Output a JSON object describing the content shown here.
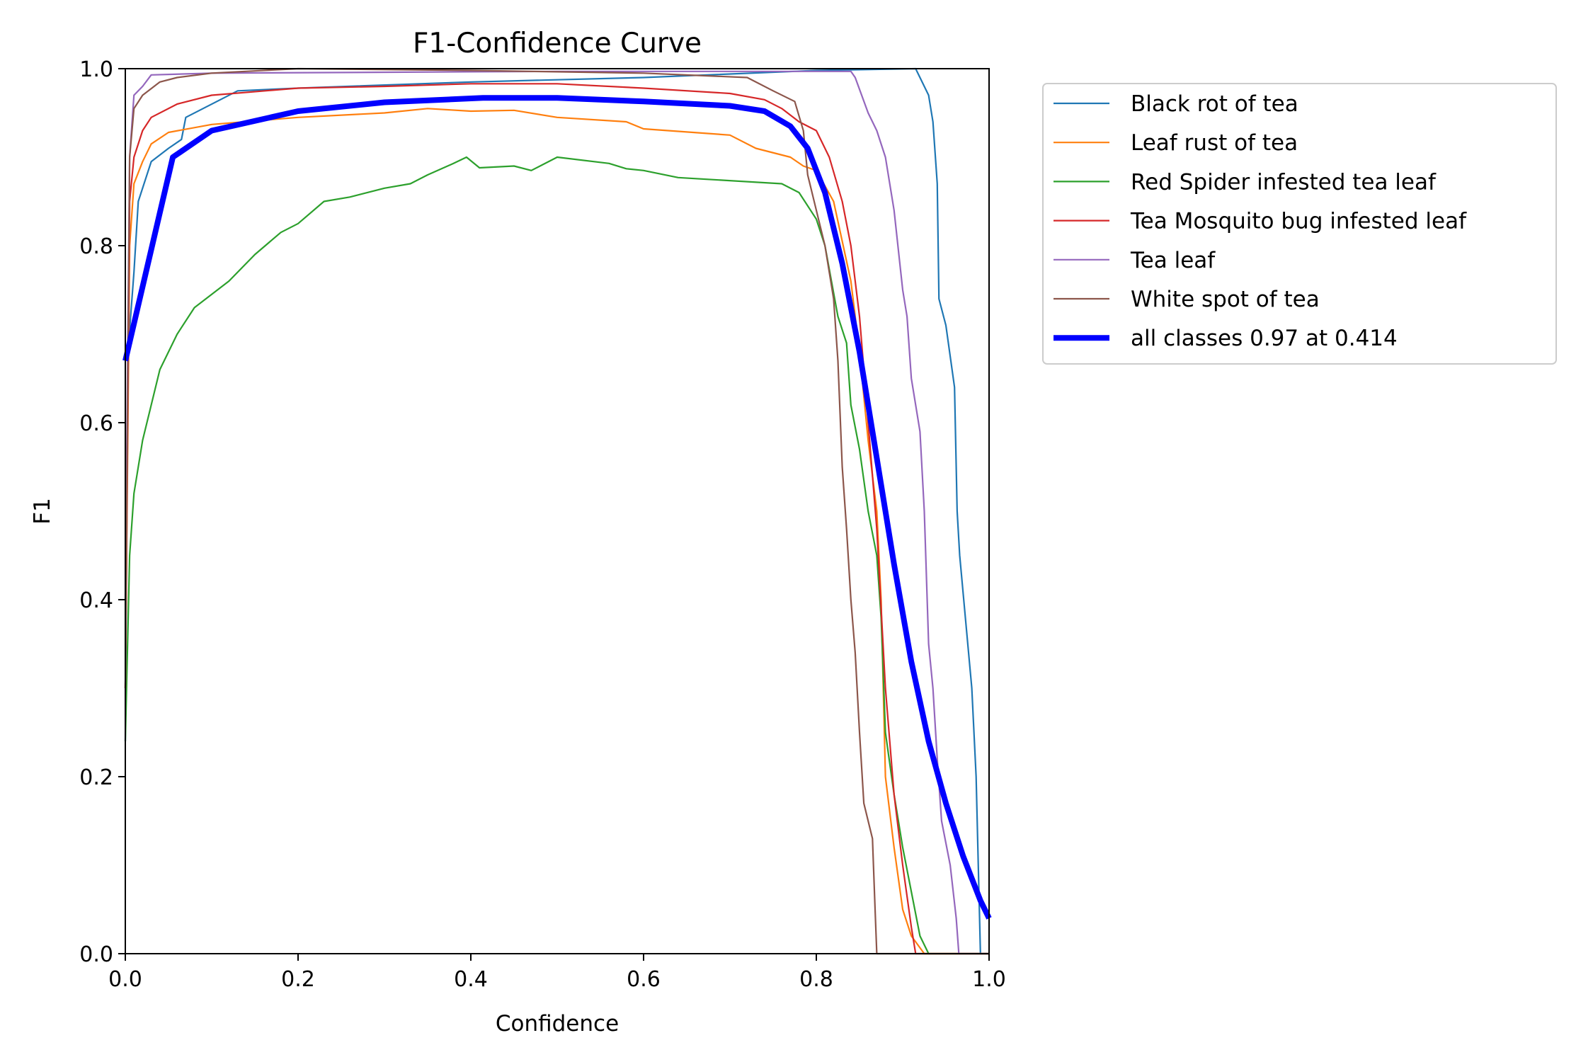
{
  "chart_data": {
    "type": "line",
    "title": "F1-Confidence Curve",
    "xlabel": "Confidence",
    "ylabel": "F1",
    "xlim": [
      0,
      1
    ],
    "ylim": [
      0,
      1
    ],
    "xticks": [
      "0.0",
      "0.2",
      "0.4",
      "0.6",
      "0.8",
      "1.0"
    ],
    "yticks": [
      "0.0",
      "0.2",
      "0.4",
      "0.6",
      "0.8",
      "1.0"
    ],
    "grid": false,
    "legend_position": "outside-upper-right",
    "series": [
      {
        "name": "Black rot of tea",
        "color": "#1f77b4",
        "width": "thin",
        "points": [
          [
            0,
            0.24
          ],
          [
            0.003,
            0.68
          ],
          [
            0.01,
            0.77
          ],
          [
            0.015,
            0.85
          ],
          [
            0.03,
            0.895
          ],
          [
            0.05,
            0.91
          ],
          [
            0.065,
            0.92
          ],
          [
            0.07,
            0.945
          ],
          [
            0.13,
            0.975
          ],
          [
            0.2,
            0.978
          ],
          [
            0.4,
            0.985
          ],
          [
            0.6,
            0.99
          ],
          [
            0.8,
            0.998
          ],
          [
            0.915,
            1.0
          ],
          [
            0.93,
            0.97
          ],
          [
            0.935,
            0.94
          ],
          [
            0.94,
            0.87
          ],
          [
            0.942,
            0.74
          ],
          [
            0.95,
            0.71
          ],
          [
            0.96,
            0.64
          ],
          [
            0.963,
            0.5
          ],
          [
            0.966,
            0.45
          ],
          [
            0.98,
            0.3
          ],
          [
            0.985,
            0.2
          ],
          [
            0.99,
            0.0
          ],
          [
            1.0,
            0.0
          ]
        ]
      },
      {
        "name": "Leaf rust of tea",
        "color": "#ff7f0e",
        "width": "thin",
        "points": [
          [
            0,
            0.3
          ],
          [
            0.005,
            0.8
          ],
          [
            0.01,
            0.87
          ],
          [
            0.02,
            0.895
          ],
          [
            0.03,
            0.915
          ],
          [
            0.05,
            0.928
          ],
          [
            0.1,
            0.937
          ],
          [
            0.2,
            0.945
          ],
          [
            0.3,
            0.95
          ],
          [
            0.35,
            0.955
          ],
          [
            0.4,
            0.952
          ],
          [
            0.45,
            0.953
          ],
          [
            0.5,
            0.945
          ],
          [
            0.58,
            0.94
          ],
          [
            0.6,
            0.932
          ],
          [
            0.7,
            0.925
          ],
          [
            0.73,
            0.91
          ],
          [
            0.77,
            0.9
          ],
          [
            0.785,
            0.89
          ],
          [
            0.8,
            0.885
          ],
          [
            0.82,
            0.85
          ],
          [
            0.84,
            0.76
          ],
          [
            0.85,
            0.68
          ],
          [
            0.86,
            0.58
          ],
          [
            0.87,
            0.5
          ],
          [
            0.875,
            0.4
          ],
          [
            0.88,
            0.2
          ],
          [
            0.89,
            0.12
          ],
          [
            0.9,
            0.05
          ],
          [
            0.91,
            0.02
          ],
          [
            0.925,
            0.0
          ],
          [
            1.0,
            0.0
          ]
        ]
      },
      {
        "name": "Red Spider infested tea leaf",
        "color": "#2ca02c",
        "width": "thin",
        "points": [
          [
            0,
            0.24
          ],
          [
            0.005,
            0.45
          ],
          [
            0.01,
            0.52
          ],
          [
            0.02,
            0.58
          ],
          [
            0.03,
            0.62
          ],
          [
            0.04,
            0.66
          ],
          [
            0.06,
            0.7
          ],
          [
            0.08,
            0.73
          ],
          [
            0.1,
            0.745
          ],
          [
            0.12,
            0.76
          ],
          [
            0.15,
            0.79
          ],
          [
            0.18,
            0.815
          ],
          [
            0.2,
            0.825
          ],
          [
            0.23,
            0.85
          ],
          [
            0.26,
            0.855
          ],
          [
            0.3,
            0.865
          ],
          [
            0.33,
            0.87
          ],
          [
            0.35,
            0.88
          ],
          [
            0.38,
            0.893
          ],
          [
            0.395,
            0.9
          ],
          [
            0.41,
            0.888
          ],
          [
            0.45,
            0.89
          ],
          [
            0.47,
            0.885
          ],
          [
            0.5,
            0.9
          ],
          [
            0.56,
            0.893
          ],
          [
            0.58,
            0.887
          ],
          [
            0.6,
            0.885
          ],
          [
            0.64,
            0.877
          ],
          [
            0.76,
            0.87
          ],
          [
            0.78,
            0.86
          ],
          [
            0.8,
            0.83
          ],
          [
            0.81,
            0.8
          ],
          [
            0.825,
            0.72
          ],
          [
            0.835,
            0.69
          ],
          [
            0.84,
            0.62
          ],
          [
            0.85,
            0.57
          ],
          [
            0.86,
            0.5
          ],
          [
            0.87,
            0.45
          ],
          [
            0.875,
            0.38
          ],
          [
            0.88,
            0.25
          ],
          [
            0.89,
            0.18
          ],
          [
            0.9,
            0.12
          ],
          [
            0.91,
            0.07
          ],
          [
            0.92,
            0.02
          ],
          [
            0.93,
            0.0
          ],
          [
            1.0,
            0.0
          ]
        ]
      },
      {
        "name": "Tea Mosquito bug infested leaf",
        "color": "#d62728",
        "width": "thin",
        "points": [
          [
            0,
            0.3
          ],
          [
            0.005,
            0.85
          ],
          [
            0.01,
            0.9
          ],
          [
            0.02,
            0.93
          ],
          [
            0.03,
            0.945
          ],
          [
            0.06,
            0.96
          ],
          [
            0.1,
            0.97
          ],
          [
            0.2,
            0.978
          ],
          [
            0.3,
            0.98
          ],
          [
            0.4,
            0.983
          ],
          [
            0.5,
            0.983
          ],
          [
            0.6,
            0.978
          ],
          [
            0.7,
            0.972
          ],
          [
            0.74,
            0.965
          ],
          [
            0.76,
            0.955
          ],
          [
            0.78,
            0.94
          ],
          [
            0.8,
            0.93
          ],
          [
            0.815,
            0.9
          ],
          [
            0.83,
            0.85
          ],
          [
            0.84,
            0.8
          ],
          [
            0.85,
            0.72
          ],
          [
            0.86,
            0.6
          ],
          [
            0.87,
            0.48
          ],
          [
            0.88,
            0.3
          ],
          [
            0.89,
            0.18
          ],
          [
            0.9,
            0.1
          ],
          [
            0.91,
            0.03
          ],
          [
            0.915,
            0.0
          ],
          [
            1.0,
            0.0
          ]
        ]
      },
      {
        "name": "Tea leaf",
        "color": "#9467bd",
        "width": "thin",
        "points": [
          [
            0,
            0.4
          ],
          [
            0.005,
            0.9
          ],
          [
            0.01,
            0.97
          ],
          [
            0.02,
            0.98
          ],
          [
            0.03,
            0.993
          ],
          [
            0.1,
            0.995
          ],
          [
            0.5,
            0.997
          ],
          [
            0.84,
            0.997
          ],
          [
            0.845,
            0.99
          ],
          [
            0.86,
            0.95
          ],
          [
            0.87,
            0.93
          ],
          [
            0.88,
            0.9
          ],
          [
            0.89,
            0.84
          ],
          [
            0.9,
            0.75
          ],
          [
            0.905,
            0.72
          ],
          [
            0.91,
            0.65
          ],
          [
            0.92,
            0.59
          ],
          [
            0.925,
            0.5
          ],
          [
            0.93,
            0.35
          ],
          [
            0.935,
            0.3
          ],
          [
            0.94,
            0.22
          ],
          [
            0.945,
            0.15
          ],
          [
            0.955,
            0.1
          ],
          [
            0.962,
            0.04
          ],
          [
            0.965,
            0.0
          ],
          [
            1.0,
            0.0
          ]
        ]
      },
      {
        "name": "White spot of tea",
        "color": "#8c564b",
        "width": "thin",
        "points": [
          [
            0,
            0.3
          ],
          [
            0.005,
            0.9
          ],
          [
            0.01,
            0.955
          ],
          [
            0.02,
            0.97
          ],
          [
            0.04,
            0.985
          ],
          [
            0.06,
            0.99
          ],
          [
            0.1,
            0.995
          ],
          [
            0.2,
            1.0
          ],
          [
            0.4,
            0.998
          ],
          [
            0.6,
            0.995
          ],
          [
            0.72,
            0.99
          ],
          [
            0.75,
            0.975
          ],
          [
            0.775,
            0.963
          ],
          [
            0.785,
            0.93
          ],
          [
            0.79,
            0.88
          ],
          [
            0.8,
            0.84
          ],
          [
            0.81,
            0.8
          ],
          [
            0.82,
            0.74
          ],
          [
            0.825,
            0.67
          ],
          [
            0.83,
            0.55
          ],
          [
            0.835,
            0.48
          ],
          [
            0.84,
            0.4
          ],
          [
            0.845,
            0.34
          ],
          [
            0.85,
            0.25
          ],
          [
            0.855,
            0.17
          ],
          [
            0.865,
            0.13
          ],
          [
            0.868,
            0.05
          ],
          [
            0.87,
            0.0
          ],
          [
            1.0,
            0.0
          ]
        ]
      },
      {
        "name": "all classes 0.97 at 0.414",
        "color": "#0000ff",
        "width": "thick",
        "points": [
          [
            0,
            0.67
          ],
          [
            0.055,
            0.9
          ],
          [
            0.1,
            0.93
          ],
          [
            0.2,
            0.952
          ],
          [
            0.3,
            0.962
          ],
          [
            0.414,
            0.967
          ],
          [
            0.5,
            0.967
          ],
          [
            0.6,
            0.963
          ],
          [
            0.7,
            0.958
          ],
          [
            0.74,
            0.952
          ],
          [
            0.77,
            0.935
          ],
          [
            0.79,
            0.91
          ],
          [
            0.81,
            0.86
          ],
          [
            0.83,
            0.78
          ],
          [
            0.85,
            0.68
          ],
          [
            0.87,
            0.56
          ],
          [
            0.89,
            0.44
          ],
          [
            0.91,
            0.33
          ],
          [
            0.93,
            0.24
          ],
          [
            0.95,
            0.17
          ],
          [
            0.97,
            0.11
          ],
          [
            0.99,
            0.06
          ],
          [
            1.0,
            0.04
          ]
        ]
      }
    ]
  }
}
